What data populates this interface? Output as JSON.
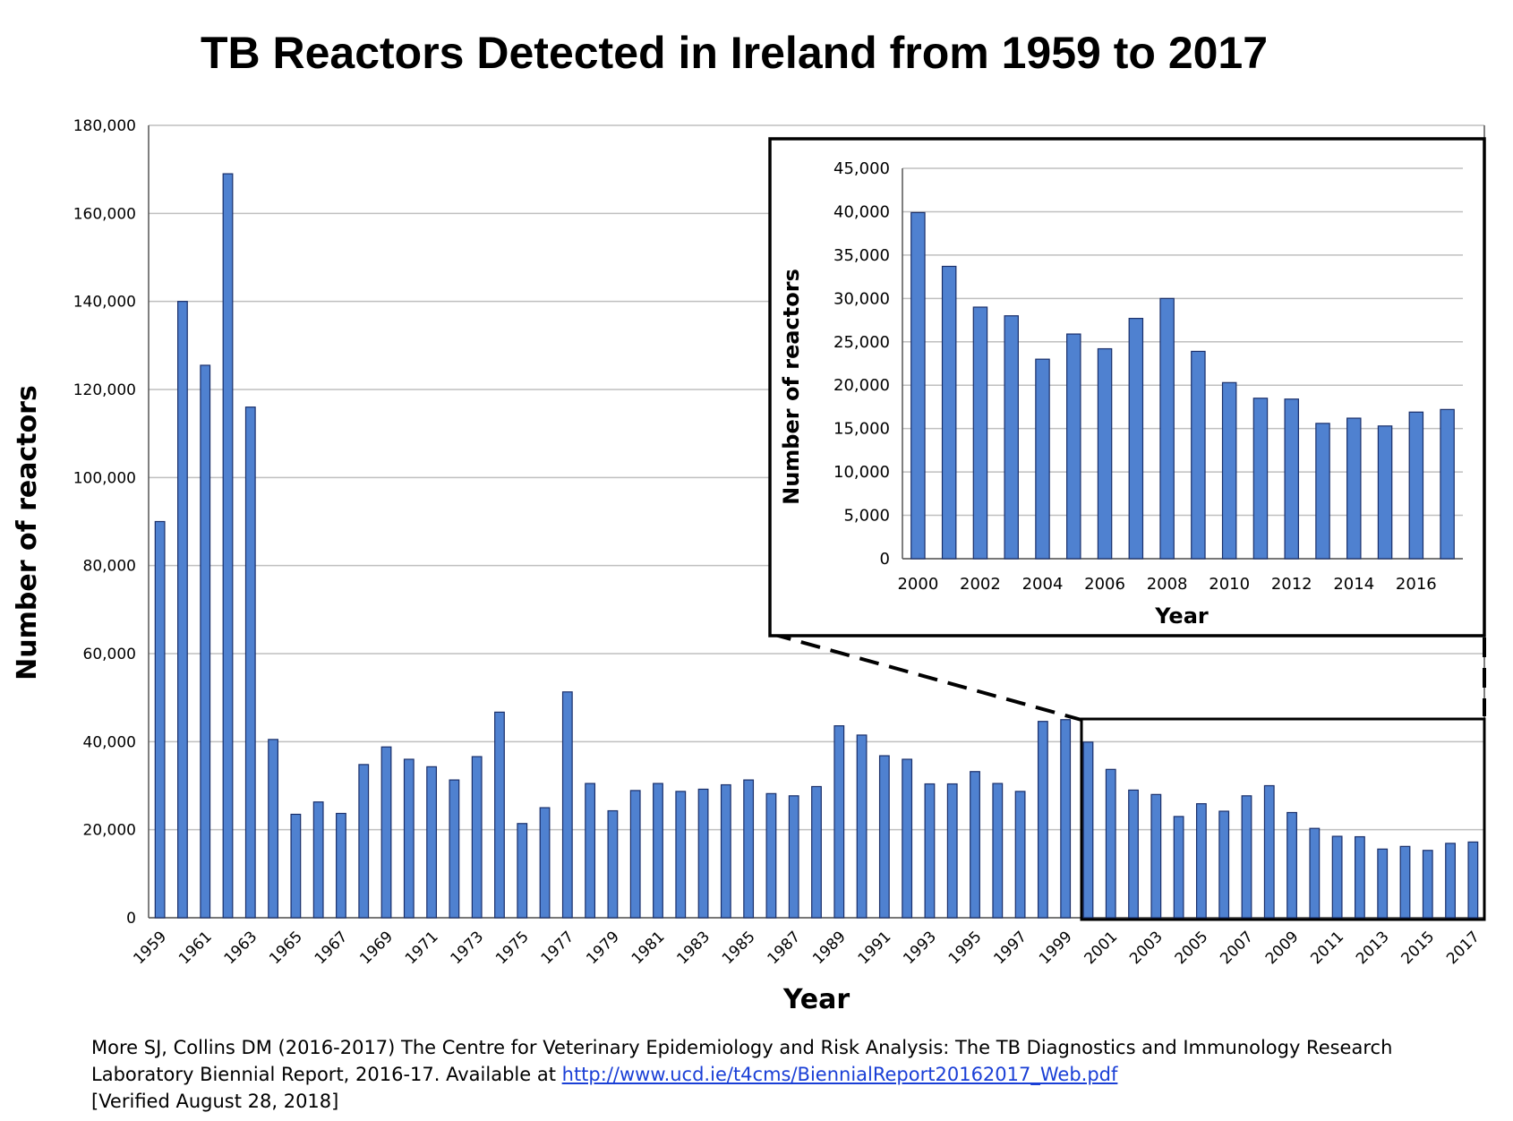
{
  "title": "TB Reactors Detected in Ireland from 1959 to 2017",
  "citation": {
    "line1": "More SJ,  Collins DM (2016-2017) The Centre for Veterinary Epidemiology and Risk Analysis: The TB Diagnostics and Immunology Research",
    "line2_prefix": "Laboratory Biennial Report, 2016-17. Available at ",
    "link": "http://www.ucd.ie/t4cms/BiennialReport20162017_Web.pdf",
    "line3": "[Verified August 28, 2018]"
  },
  "colors": {
    "bar_fill": "#4f81d0",
    "bar_stroke": "#1a2f6a",
    "grid": "#bfbfbf"
  },
  "chart_data": [
    {
      "type": "bar",
      "title": "TB Reactors Detected in Ireland from 1959 to 2017",
      "xlabel": "Year",
      "ylabel": "Number of reactors",
      "ylim": [
        0,
        180000
      ],
      "yticks": [
        0,
        20000,
        40000,
        60000,
        80000,
        100000,
        120000,
        140000,
        160000,
        180000
      ],
      "ytick_labels": [
        "0",
        "20,000",
        "40,000",
        "60,000",
        "80,000",
        "100,000",
        "120,000",
        "140,000",
        "160,000",
        "180,000"
      ],
      "grid": true,
      "categories": [
        1959,
        1960,
        1961,
        1962,
        1963,
        1964,
        1965,
        1966,
        1967,
        1968,
        1969,
        1970,
        1971,
        1972,
        1973,
        1974,
        1975,
        1976,
        1977,
        1978,
        1979,
        1980,
        1981,
        1982,
        1983,
        1984,
        1985,
        1986,
        1987,
        1988,
        1989,
        1990,
        1991,
        1992,
        1993,
        1994,
        1995,
        1996,
        1997,
        1998,
        1999,
        2000,
        2001,
        2002,
        2003,
        2004,
        2005,
        2006,
        2007,
        2008,
        2009,
        2010,
        2011,
        2012,
        2013,
        2014,
        2015,
        2016,
        2017
      ],
      "xtick_labels": [
        "1959",
        "1961",
        "1963",
        "1965",
        "1967",
        "1969",
        "1971",
        "1973",
        "1975",
        "1977",
        "1979",
        "1981",
        "1983",
        "1985",
        "1987",
        "1989",
        "1991",
        "1993",
        "1995",
        "1997",
        "1999",
        "2001",
        "2003",
        "2005",
        "2007",
        "2009",
        "2011",
        "2013",
        "2015",
        "2017"
      ],
      "values": [
        90000,
        140000,
        125500,
        169000,
        116000,
        40500,
        23500,
        26300,
        23700,
        34800,
        38800,
        36000,
        34300,
        31300,
        36600,
        46700,
        21400,
        25000,
        51300,
        30500,
        24300,
        28900,
        30500,
        28700,
        29200,
        30200,
        31300,
        28200,
        27700,
        29800,
        43600,
        41500,
        36800,
        36000,
        30400,
        30400,
        33200,
        30500,
        28700,
        44600,
        45000,
        39900,
        33700,
        29000,
        28000,
        23000,
        25900,
        24200,
        27700,
        30000,
        23900,
        20300,
        18500,
        18400,
        15600,
        16200,
        15300,
        16900,
        17200
      ]
    },
    {
      "type": "bar",
      "xlabel": "Year",
      "ylabel": "Number of reactors",
      "ylim": [
        0,
        45000
      ],
      "yticks": [
        0,
        5000,
        10000,
        15000,
        20000,
        25000,
        30000,
        35000,
        40000,
        45000
      ],
      "ytick_labels": [
        "0",
        "5,000",
        "10,000",
        "15,000",
        "20,000",
        "25,000",
        "30,000",
        "35,000",
        "40,000",
        "45,000"
      ],
      "grid": true,
      "categories": [
        2000,
        2001,
        2002,
        2003,
        2004,
        2005,
        2006,
        2007,
        2008,
        2009,
        2010,
        2011,
        2012,
        2013,
        2014,
        2015,
        2016,
        2017
      ],
      "xtick_labels": [
        "2000",
        "2002",
        "2004",
        "2006",
        "2008",
        "2010",
        "2012",
        "2014",
        "2016"
      ],
      "values": [
        39900,
        33700,
        29000,
        28000,
        23000,
        25900,
        24200,
        27700,
        30000,
        23900,
        20300,
        18500,
        18400,
        15600,
        16200,
        15300,
        16900,
        17200
      ]
    }
  ]
}
